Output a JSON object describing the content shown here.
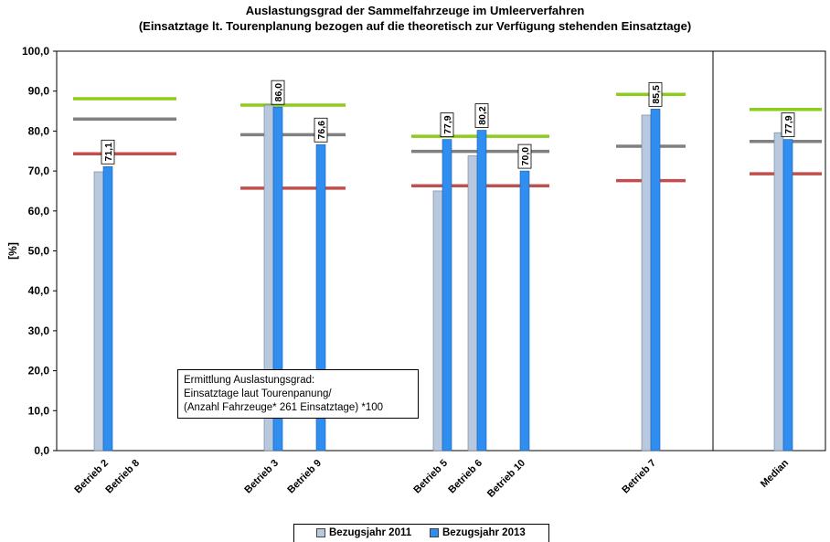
{
  "chart_data": {
    "type": "bar",
    "title": "Auslastungsgrad der Sammelfahrzeuge im Umleerverfahren",
    "subtitle": "(Einsatztage lt. Tourenplanung bezogen auf die theoretisch zur Verfügung stehenden Einsatztage)",
    "ylabel": "[%]",
    "ylim": [
      0,
      100
    ],
    "yticks": [
      "0,0",
      "10,0",
      "20,0",
      "30,0",
      "40,0",
      "50,0",
      "60,0",
      "70,0",
      "80,0",
      "90,0",
      "100,0"
    ],
    "grid": false,
    "legend_position": "bottom",
    "categories": [
      "Betrieb 2",
      "Betrieb 8",
      "Betrieb 3",
      "Betrieb 9",
      "Betrieb 5",
      "Betrieb 6",
      "Betrieb 10",
      "Betrieb 7",
      "Median"
    ],
    "series": [
      {
        "name": "Bezugsjahr 2011",
        "color": "#b8c8de",
        "values": [
          69.8,
          null,
          86.5,
          null,
          65.0,
          73.8,
          null,
          84.0,
          79.6
        ]
      },
      {
        "name": "Bezugsjahr 2013",
        "color": "#2f8ef0",
        "values": [
          71.1,
          null,
          86.0,
          76.6,
          77.9,
          80.2,
          70.0,
          85.5,
          77.9
        ]
      }
    ],
    "data_labels": [
      "71,1",
      "86,0",
      "76,6",
      "77,9",
      "80,2",
      "70,0",
      "85,5",
      "77,9"
    ],
    "reference_lines": {
      "colors": {
        "upper": "#8ccc1c",
        "middle": "#808080",
        "lower": "#c0504d"
      },
      "groups": [
        {
          "upper": 88.1,
          "middle": 83.0,
          "lower": 74.3
        },
        {
          "upper": 86.5,
          "middle": 79.1,
          "lower": 65.7
        },
        {
          "upper": 78.7,
          "middle": 74.9,
          "lower": 66.3
        },
        {
          "upper": 89.2,
          "middle": 76.2,
          "lower": 67.6
        },
        {
          "upper": 85.4,
          "middle": 77.4,
          "lower": 69.3
        }
      ]
    },
    "annotation": [
      "Ermittlung Auslastungsgrad:",
      "Einsatztage laut Tourenpanung/",
      "(Anzahl Fahrzeuge*  261 Einsatztage) *100"
    ]
  }
}
